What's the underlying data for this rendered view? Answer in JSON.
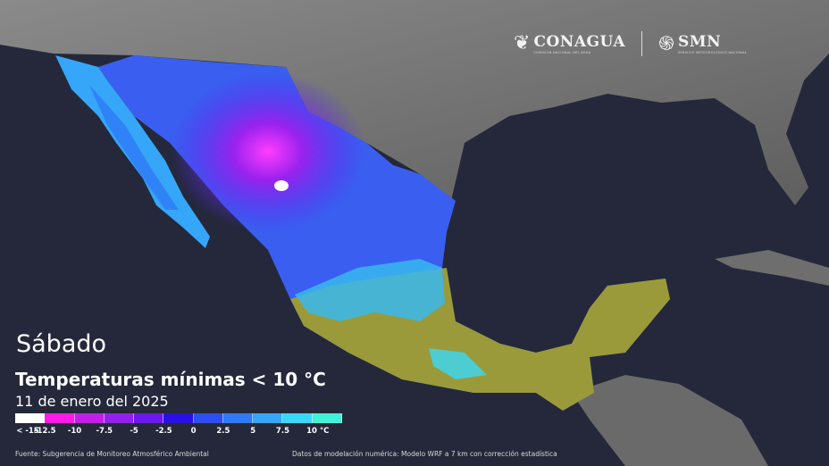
{
  "logos": {
    "conagua": {
      "name": "CONAGUA",
      "subtitle": "COMISIÓN NACIONAL DEL AGUA"
    },
    "smn": {
      "name": "SMN",
      "subtitle": "SERVICIO METEOROLÓGICO NACIONAL"
    }
  },
  "header": {
    "day": "Sábado",
    "title": "Temperaturas mínimas < 10 °C",
    "date": "11 de enero del 2025"
  },
  "legend": {
    "colors": [
      "#ffffff",
      "#ff1ae8",
      "#c21ee8",
      "#9520ee",
      "#6a18ee",
      "#2a0fe6",
      "#2b4ff0",
      "#2f7af5",
      "#35a6f8",
      "#3ad8f8",
      "#42f2d8"
    ],
    "labels": [
      "< -15",
      "-12.5",
      "-10",
      "-7.5",
      "-5",
      "-2.5",
      "0",
      "2.5",
      "5",
      "7.5",
      "10 °C"
    ],
    "unit": "°C"
  },
  "footer": {
    "source": "Fuente: Subgerencia de Monitoreo Atmosférico Ambiental",
    "model": "Datos de modelación numérica: Modelo WRF a 7 km con corrección estadística"
  }
}
